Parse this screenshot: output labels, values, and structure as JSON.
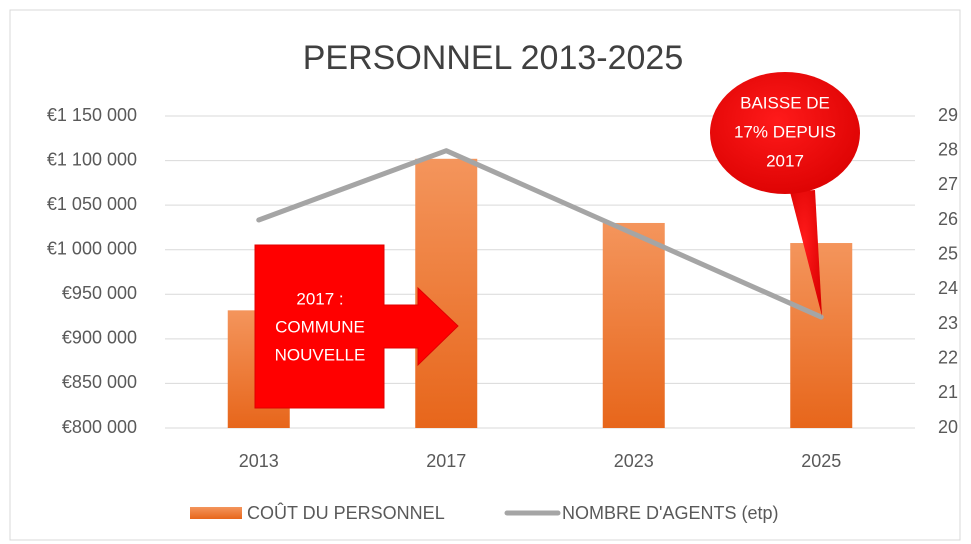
{
  "chart_data": {
    "type": "bar",
    "title": "PERSONNEL 2013-2025",
    "categories": [
      "2013",
      "2017",
      "2023",
      "2025"
    ],
    "series": [
      {
        "name": "COÛT DU PERSONNEL",
        "type": "bar",
        "color": "#ed7d31",
        "values": [
          932000,
          1102000,
          1030000,
          1007500
        ]
      },
      {
        "name": "NOMBRE D'AGENTS (etp)",
        "type": "line",
        "axis": "y2",
        "color": "#a5a5a5",
        "values": [
          26,
          28,
          25.6,
          23.2
        ]
      }
    ],
    "ylim": [
      800000,
      1150000
    ],
    "yticks": [
      {
        "value": 800000,
        "label": "€800 000"
      },
      {
        "value": 850000,
        "label": "€850 000"
      },
      {
        "value": 900000,
        "label": "€900 000"
      },
      {
        "value": 950000,
        "label": "€950 000"
      },
      {
        "value": 1000000,
        "label": "€1 000 000"
      },
      {
        "value": 1050000,
        "label": "€1 050 000"
      },
      {
        "value": 1100000,
        "label": "€1 100 000"
      },
      {
        "value": 1150000,
        "label": "€1 150 000"
      }
    ],
    "y2lim": [
      20,
      29
    ],
    "y2ticks": [
      20,
      21,
      22,
      23,
      24,
      25,
      26,
      27,
      28,
      29
    ],
    "grid": true,
    "legend": "bottom",
    "annotations": [
      {
        "lines": [
          "2017 :",
          "COMMUNE",
          "NOUVELLE"
        ]
      },
      {
        "lines": [
          "BAISSE DE",
          "17% DEPUIS",
          "2017"
        ]
      }
    ]
  }
}
